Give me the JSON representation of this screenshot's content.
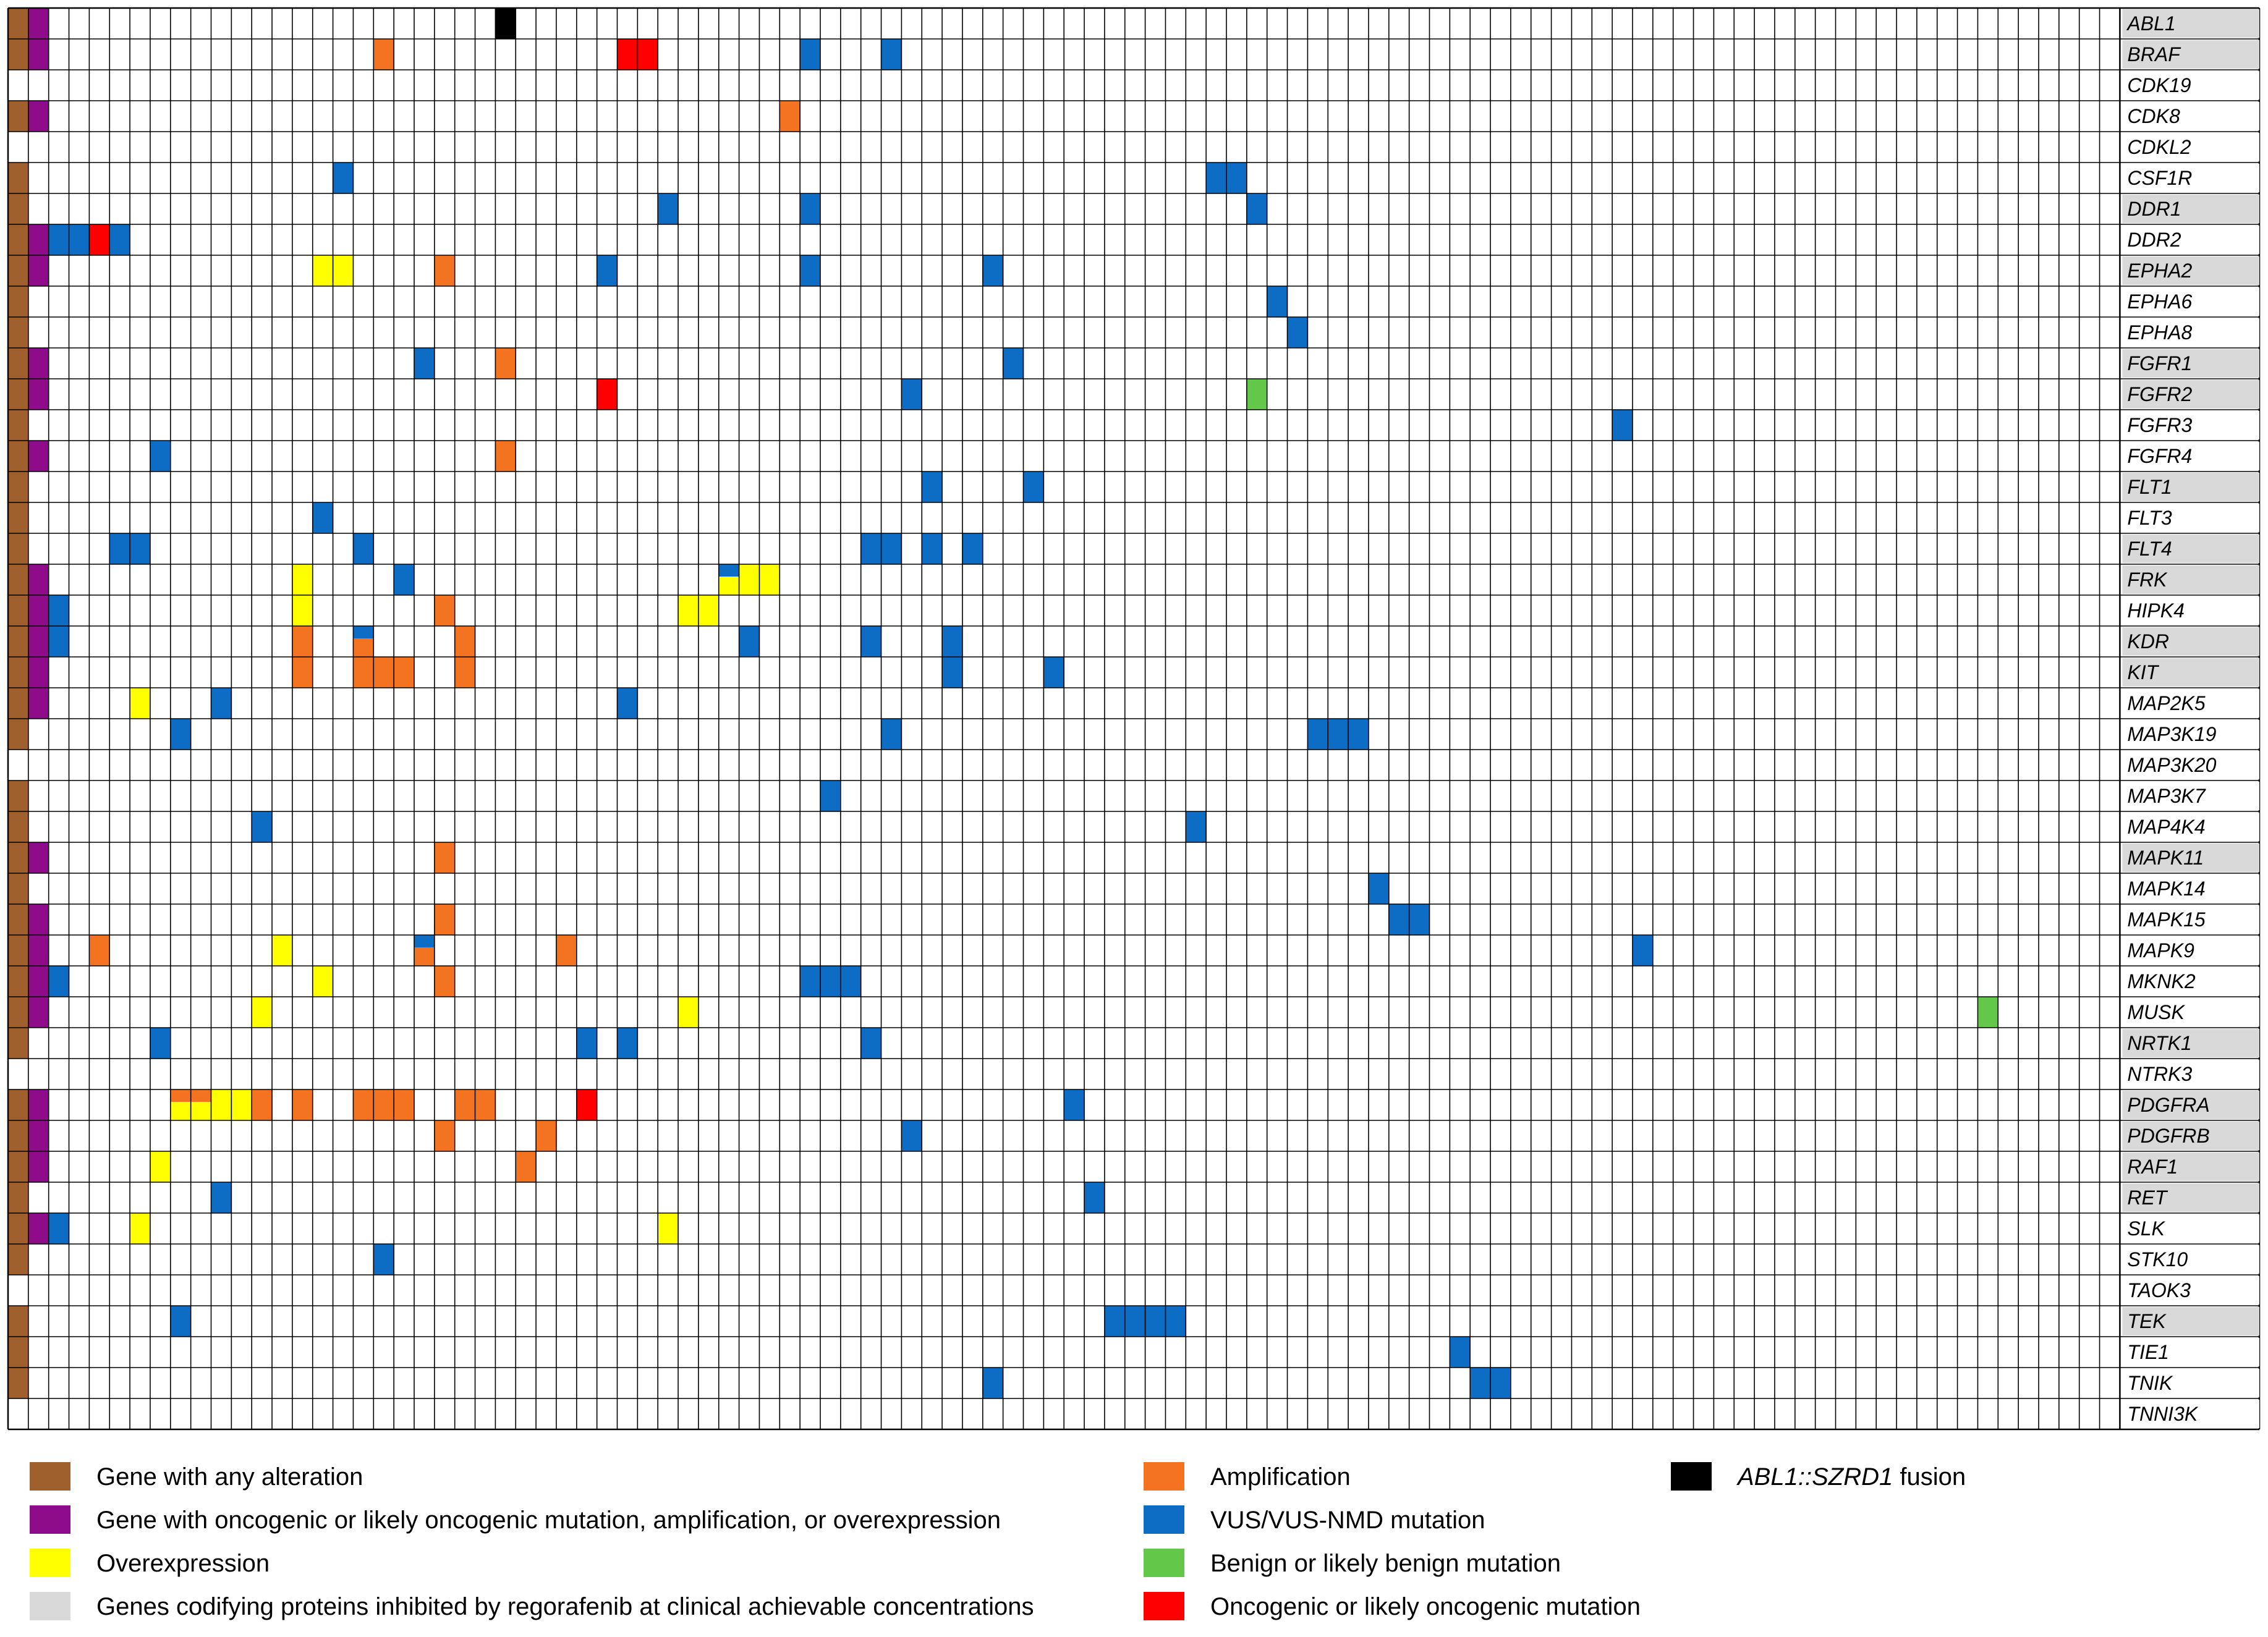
{
  "chart_data": {
    "type": "heatmap",
    "genes": [
      "ABL1",
      "BRAF",
      "CDK19",
      "CDK8",
      "CDKL2",
      "CSF1R",
      "DDR1",
      "DDR2",
      "EPHA2",
      "EPHA6",
      "EPHA8",
      "FGFR1",
      "FGFR2",
      "FGFR3",
      "FGFR4",
      "FLT1",
      "FLT3",
      "FLT4",
      "FRK",
      "HIPK4",
      "KDR",
      "KIT",
      "MAP2K5",
      "MAP3K19",
      "MAP3K20",
      "MAP3K7",
      "MAP4K4",
      "MAPK11",
      "MAPK14",
      "MAPK15",
      "MAPK9",
      "MKNK2",
      "MUSK",
      "NRTK1",
      "NTRK3",
      "PDGFRA",
      "PDGFRB",
      "RAF1",
      "RET",
      "SLK",
      "STK10",
      "TAOK3",
      "TEK",
      "TIE1",
      "TNIK",
      "TNNI3K"
    ],
    "regorafenib_targets": [
      "ABL1",
      "BRAF",
      "DDR1",
      "EPHA2",
      "FGFR1",
      "FGFR2",
      "FLT1",
      "FLT4",
      "FRK",
      "KDR",
      "KIT",
      "MAPK11",
      "NRTK1",
      "PDGFRA",
      "PDGFRB",
      "RAF1",
      "RET",
      "TEK"
    ],
    "any_alteration": [
      "ABL1",
      "BRAF",
      "CDK8",
      "CSF1R",
      "DDR1",
      "DDR2",
      "EPHA2",
      "EPHA6",
      "EPHA8",
      "FGFR1",
      "FGFR2",
      "FGFR3",
      "FGFR4",
      "FLT1",
      "FLT3",
      "FLT4",
      "FRK",
      "HIPK4",
      "KDR",
      "KIT",
      "MAP2K5",
      "MAP3K19",
      "MAP3K7",
      "MAP4K4",
      "MAPK11",
      "MAPK14",
      "MAPK15",
      "MAPK9",
      "MKNK2",
      "MUSK",
      "NRTK1",
      "PDGFRA",
      "PDGFRB",
      "RAF1",
      "RET",
      "SLK",
      "STK10",
      "TEK",
      "TIE1",
      "TNIK"
    ],
    "oncogenic_gene": [
      "ABL1",
      "BRAF",
      "CDK8",
      "DDR2",
      "EPHA2",
      "FGFR1",
      "FGFR2",
      "FGFR4",
      "FRK",
      "HIPK4",
      "KDR",
      "KIT",
      "MAP2K5",
      "MAPK11",
      "MAPK15",
      "MAPK9",
      "MKNK2",
      "MUSK",
      "PDGFRA",
      "PDGFRB",
      "RAF1",
      "SLK"
    ],
    "n_samples": 102,
    "cells": [
      {
        "gene": "ABL1",
        "sample": 23,
        "type": "fusion"
      },
      {
        "gene": "BRAF",
        "sample": 17,
        "type": "amplification"
      },
      {
        "gene": "BRAF",
        "sample": 29,
        "type": "oncogenic_mutation"
      },
      {
        "gene": "BRAF",
        "sample": 30,
        "type": "oncogenic_mutation"
      },
      {
        "gene": "BRAF",
        "sample": 38,
        "type": "vus_mutation"
      },
      {
        "gene": "BRAF",
        "sample": 42,
        "type": "vus_mutation"
      },
      {
        "gene": "CDK8",
        "sample": 37,
        "type": "amplification"
      },
      {
        "gene": "CSF1R",
        "sample": 15,
        "type": "vus_mutation"
      },
      {
        "gene": "CSF1R",
        "sample": 58,
        "type": "vus_mutation"
      },
      {
        "gene": "CSF1R",
        "sample": 59,
        "type": "vus_mutation"
      },
      {
        "gene": "DDR1",
        "sample": 31,
        "type": "vus_mutation"
      },
      {
        "gene": "DDR1",
        "sample": 38,
        "type": "vus_mutation"
      },
      {
        "gene": "DDR1",
        "sample": 60,
        "type": "vus_mutation"
      },
      {
        "gene": "DDR2",
        "sample": 1,
        "type": "vus_mutation"
      },
      {
        "gene": "DDR2",
        "sample": 2,
        "type": "vus_mutation"
      },
      {
        "gene": "DDR2",
        "sample": 3,
        "type": "oncogenic_mutation"
      },
      {
        "gene": "DDR2",
        "sample": 4,
        "type": "vus_mutation"
      },
      {
        "gene": "EPHA2",
        "sample": 14,
        "type": "overexpression"
      },
      {
        "gene": "EPHA2",
        "sample": 15,
        "type": "overexpression"
      },
      {
        "gene": "EPHA2",
        "sample": 20,
        "type": "amplification"
      },
      {
        "gene": "EPHA2",
        "sample": 28,
        "type": "vus_mutation"
      },
      {
        "gene": "EPHA2",
        "sample": 38,
        "type": "vus_mutation"
      },
      {
        "gene": "EPHA2",
        "sample": 47,
        "type": "vus_mutation"
      },
      {
        "gene": "EPHA6",
        "sample": 61,
        "type": "vus_mutation"
      },
      {
        "gene": "EPHA8",
        "sample": 62,
        "type": "vus_mutation"
      },
      {
        "gene": "FGFR1",
        "sample": 19,
        "type": "vus_mutation"
      },
      {
        "gene": "FGFR1",
        "sample": 23,
        "type": "amplification"
      },
      {
        "gene": "FGFR1",
        "sample": 48,
        "type": "vus_mutation"
      },
      {
        "gene": "FGFR2",
        "sample": 28,
        "type": "oncogenic_mutation"
      },
      {
        "gene": "FGFR2",
        "sample": 43,
        "type": "vus_mutation"
      },
      {
        "gene": "FGFR2",
        "sample": 60,
        "type": "benign_mutation"
      },
      {
        "gene": "FGFR3",
        "sample": 78,
        "type": "vus_mutation"
      },
      {
        "gene": "FGFR4",
        "sample": 6,
        "type": "vus_mutation"
      },
      {
        "gene": "FGFR4",
        "sample": 23,
        "type": "amplification"
      },
      {
        "gene": "FLT1",
        "sample": 44,
        "type": "vus_mutation"
      },
      {
        "gene": "FLT1",
        "sample": 49,
        "type": "vus_mutation"
      },
      {
        "gene": "FLT3",
        "sample": 14,
        "type": "vus_mutation"
      },
      {
        "gene": "FLT4",
        "sample": 4,
        "type": "vus_mutation"
      },
      {
        "gene": "FLT4",
        "sample": 5,
        "type": "vus_mutation"
      },
      {
        "gene": "FLT4",
        "sample": 16,
        "type": "vus_mutation"
      },
      {
        "gene": "FLT4",
        "sample": 41,
        "type": "vus_mutation"
      },
      {
        "gene": "FLT4",
        "sample": 42,
        "type": "vus_mutation"
      },
      {
        "gene": "FLT4",
        "sample": 44,
        "type": "vus_mutation"
      },
      {
        "gene": "FLT4",
        "sample": 46,
        "type": "vus_mutation"
      },
      {
        "gene": "FRK",
        "sample": 13,
        "type": "overexpression"
      },
      {
        "gene": "FRK",
        "sample": 18,
        "type": "vus_mutation"
      },
      {
        "gene": "FRK",
        "sample": 34,
        "type": "vus_mutation",
        "bottom": "overexpression"
      },
      {
        "gene": "FRK",
        "sample": 35,
        "type": "overexpression"
      },
      {
        "gene": "FRK",
        "sample": 36,
        "type": "overexpression"
      },
      {
        "gene": "HIPK4",
        "sample": 1,
        "type": "vus_mutation"
      },
      {
        "gene": "HIPK4",
        "sample": 13,
        "type": "overexpression"
      },
      {
        "gene": "HIPK4",
        "sample": 20,
        "type": "amplification"
      },
      {
        "gene": "HIPK4",
        "sample": 32,
        "type": "overexpression"
      },
      {
        "gene": "HIPK4",
        "sample": 33,
        "type": "overexpression"
      },
      {
        "gene": "KDR",
        "sample": 1,
        "type": "vus_mutation"
      },
      {
        "gene": "KDR",
        "sample": 13,
        "type": "amplification"
      },
      {
        "gene": "KDR",
        "sample": 16,
        "type": "vus_mutation",
        "bottom": "amplification"
      },
      {
        "gene": "KDR",
        "sample": 21,
        "type": "amplification"
      },
      {
        "gene": "KDR",
        "sample": 35,
        "type": "vus_mutation"
      },
      {
        "gene": "KDR",
        "sample": 41,
        "type": "vus_mutation"
      },
      {
        "gene": "KDR",
        "sample": 45,
        "type": "vus_mutation"
      },
      {
        "gene": "KIT",
        "sample": 13,
        "type": "amplification"
      },
      {
        "gene": "KIT",
        "sample": 16,
        "type": "amplification"
      },
      {
        "gene": "KIT",
        "sample": 17,
        "type": "amplification"
      },
      {
        "gene": "KIT",
        "sample": 18,
        "type": "amplification"
      },
      {
        "gene": "KIT",
        "sample": 21,
        "type": "amplification"
      },
      {
        "gene": "KIT",
        "sample": 45,
        "type": "vus_mutation"
      },
      {
        "gene": "KIT",
        "sample": 50,
        "type": "vus_mutation"
      },
      {
        "gene": "MAP2K5",
        "sample": 5,
        "type": "overexpression"
      },
      {
        "gene": "MAP2K5",
        "sample": 9,
        "type": "vus_mutation"
      },
      {
        "gene": "MAP2K5",
        "sample": 29,
        "type": "vus_mutation"
      },
      {
        "gene": "MAP3K19",
        "sample": 7,
        "type": "vus_mutation"
      },
      {
        "gene": "MAP3K19",
        "sample": 42,
        "type": "vus_mutation"
      },
      {
        "gene": "MAP3K19",
        "sample": 63,
        "type": "vus_mutation"
      },
      {
        "gene": "MAP3K19",
        "sample": 64,
        "type": "vus_mutation"
      },
      {
        "gene": "MAP3K19",
        "sample": 65,
        "type": "vus_mutation"
      },
      {
        "gene": "MAP3K7",
        "sample": 39,
        "type": "vus_mutation"
      },
      {
        "gene": "MAP4K4",
        "sample": 11,
        "type": "vus_mutation"
      },
      {
        "gene": "MAP4K4",
        "sample": 57,
        "type": "vus_mutation"
      },
      {
        "gene": "MAPK11",
        "sample": 20,
        "type": "amplification"
      },
      {
        "gene": "MAPK14",
        "sample": 66,
        "type": "vus_mutation"
      },
      {
        "gene": "MAPK15",
        "sample": 20,
        "type": "amplification"
      },
      {
        "gene": "MAPK15",
        "sample": 67,
        "type": "vus_mutation"
      },
      {
        "gene": "MAPK15",
        "sample": 68,
        "type": "vus_mutation"
      },
      {
        "gene": "MAPK9",
        "sample": 3,
        "type": "amplification"
      },
      {
        "gene": "MAPK9",
        "sample": 12,
        "type": "overexpression"
      },
      {
        "gene": "MAPK9",
        "sample": 19,
        "type": "vus_mutation",
        "bottom": "amplification"
      },
      {
        "gene": "MAPK9",
        "sample": 26,
        "type": "amplification"
      },
      {
        "gene": "MAPK9",
        "sample": 79,
        "type": "vus_mutation"
      },
      {
        "gene": "MKNK2",
        "sample": 1,
        "type": "vus_mutation"
      },
      {
        "gene": "MKNK2",
        "sample": 14,
        "type": "overexpression"
      },
      {
        "gene": "MKNK2",
        "sample": 20,
        "type": "amplification"
      },
      {
        "gene": "MKNK2",
        "sample": 38,
        "type": "vus_mutation"
      },
      {
        "gene": "MKNK2",
        "sample": 39,
        "type": "vus_mutation"
      },
      {
        "gene": "MKNK2",
        "sample": 40,
        "type": "vus_mutation"
      },
      {
        "gene": "MUSK",
        "sample": 11,
        "type": "overexpression"
      },
      {
        "gene": "MUSK",
        "sample": 32,
        "type": "overexpression"
      },
      {
        "gene": "MUSK",
        "sample": 96,
        "type": "benign_mutation"
      },
      {
        "gene": "NRTK1",
        "sample": 6,
        "type": "vus_mutation"
      },
      {
        "gene": "NRTK1",
        "sample": 27,
        "type": "vus_mutation"
      },
      {
        "gene": "NRTK1",
        "sample": 29,
        "type": "vus_mutation"
      },
      {
        "gene": "NRTK1",
        "sample": 41,
        "type": "vus_mutation"
      },
      {
        "gene": "PDGFRA",
        "sample": 7,
        "type": "amplification",
        "bottom": "overexpression"
      },
      {
        "gene": "PDGFRA",
        "sample": 8,
        "type": "amplification",
        "bottom": "overexpression"
      },
      {
        "gene": "PDGFRA",
        "sample": 9,
        "type": "overexpression"
      },
      {
        "gene": "PDGFRA",
        "sample": 10,
        "type": "overexpression"
      },
      {
        "gene": "PDGFRA",
        "sample": 11,
        "type": "amplification"
      },
      {
        "gene": "PDGFRA",
        "sample": 13,
        "type": "amplification"
      },
      {
        "gene": "PDGFRA",
        "sample": 16,
        "type": "amplification"
      },
      {
        "gene": "PDGFRA",
        "sample": 17,
        "type": "amplification"
      },
      {
        "gene": "PDGFRA",
        "sample": 18,
        "type": "amplification"
      },
      {
        "gene": "PDGFRA",
        "sample": 21,
        "type": "amplification"
      },
      {
        "gene": "PDGFRA",
        "sample": 22,
        "type": "amplification"
      },
      {
        "gene": "PDGFRA",
        "sample": 27,
        "type": "oncogenic_mutation"
      },
      {
        "gene": "PDGFRA",
        "sample": 51,
        "type": "vus_mutation"
      },
      {
        "gene": "PDGFRB",
        "sample": 20,
        "type": "amplification"
      },
      {
        "gene": "PDGFRB",
        "sample": 25,
        "type": "amplification"
      },
      {
        "gene": "PDGFRB",
        "sample": 43,
        "type": "vus_mutation"
      },
      {
        "gene": "RAF1",
        "sample": 6,
        "type": "overexpression"
      },
      {
        "gene": "RAF1",
        "sample": 24,
        "type": "amplification"
      },
      {
        "gene": "RET",
        "sample": 9,
        "type": "vus_mutation"
      },
      {
        "gene": "RET",
        "sample": 52,
        "type": "vus_mutation"
      },
      {
        "gene": "SLK",
        "sample": 1,
        "type": "vus_mutation"
      },
      {
        "gene": "SLK",
        "sample": 5,
        "type": "overexpression"
      },
      {
        "gene": "SLK",
        "sample": 31,
        "type": "overexpression"
      },
      {
        "gene": "STK10",
        "sample": 17,
        "type": "vus_mutation"
      },
      {
        "gene": "TEK",
        "sample": 7,
        "type": "vus_mutation"
      },
      {
        "gene": "TEK",
        "sample": 53,
        "type": "vus_mutation"
      },
      {
        "gene": "TEK",
        "sample": 54,
        "type": "vus_mutation"
      },
      {
        "gene": "TEK",
        "sample": 55,
        "type": "vus_mutation"
      },
      {
        "gene": "TEK",
        "sample": 56,
        "type": "vus_mutation"
      },
      {
        "gene": "TIE1",
        "sample": 70,
        "type": "vus_mutation"
      },
      {
        "gene": "TNIK",
        "sample": 47,
        "type": "vus_mutation"
      },
      {
        "gene": "TNIK",
        "sample": 71,
        "type": "vus_mutation"
      },
      {
        "gene": "TNIK",
        "sample": 72,
        "type": "vus_mutation"
      }
    ],
    "legend": [
      {
        "key": "any_alteration",
        "label": "Gene with any alteration",
        "italic": false
      },
      {
        "key": "oncogenic_gene",
        "label": "Gene with oncogenic or likely oncogenic mutation, amplification, or overexpression",
        "italic": false
      },
      {
        "key": "overexpression",
        "label": "Overexpression",
        "italic": false
      },
      {
        "key": "regorafenib",
        "label": "Genes codifying proteins inhibited by regorafenib at clinical achievable concentrations",
        "italic": false
      },
      {
        "key": "amplification",
        "label": "Amplification",
        "italic": false
      },
      {
        "key": "vus_mutation",
        "label": "VUS/VUS-NMD mutation",
        "italic": false
      },
      {
        "key": "benign_mutation",
        "label": "Benign or likely benign mutation",
        "italic": false
      },
      {
        "key": "oncogenic_mutation",
        "label": "Oncogenic or likely oncogenic mutation",
        "italic": false
      },
      {
        "key": "fusion",
        "label": "ABL1::SZRD1",
        "suffix": " fusion",
        "italic": true
      }
    ],
    "colors": {
      "any_alteration": "#a0602e",
      "oncogenic_gene": "#8e0c8a",
      "overexpression": "#ffff00",
      "regorafenib": "#d9d9d9",
      "amplification": "#f47321",
      "vus_mutation": "#0d6cc3",
      "benign_mutation": "#63c84a",
      "oncogenic_mutation": "#ff0000",
      "fusion": "#000000",
      "grid": "#000000",
      "background": "#ffffff"
    }
  }
}
